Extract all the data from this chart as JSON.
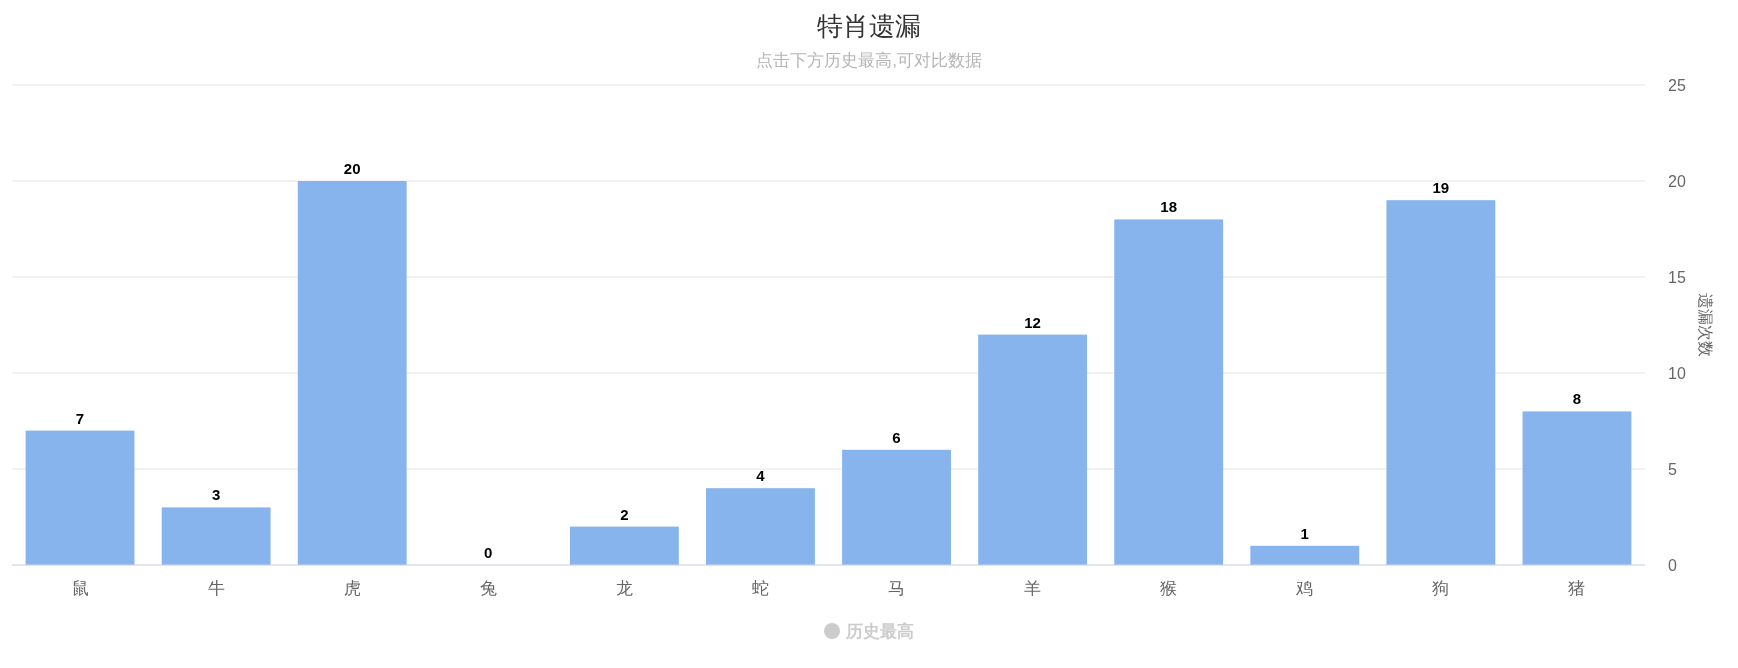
{
  "chart_data": {
    "type": "bar",
    "title": "特肖遗漏",
    "subtitle": "点击下方历史最高,可对比数据",
    "ylabel": "遗漏次数",
    "categories": [
      "鼠",
      "牛",
      "虎",
      "兔",
      "龙",
      "蛇",
      "马",
      "羊",
      "猴",
      "鸡",
      "狗",
      "猪"
    ],
    "series": [
      {
        "color": "#87b4ec",
        "values": [
          7,
          3,
          20,
          0,
          2,
          4,
          6,
          12,
          18,
          1,
          19,
          8
        ]
      },
      {
        "name": "历史最高",
        "color": "#cccccc",
        "values": [
          null,
          null,
          null,
          null,
          null,
          null,
          null,
          null,
          null,
          null,
          null,
          null
        ]
      }
    ],
    "ylim": [
      0,
      25
    ],
    "yticks": [
      0,
      5,
      10,
      15,
      20,
      25
    ],
    "grid": "y",
    "legend": "bottom",
    "data_labels": true
  }
}
